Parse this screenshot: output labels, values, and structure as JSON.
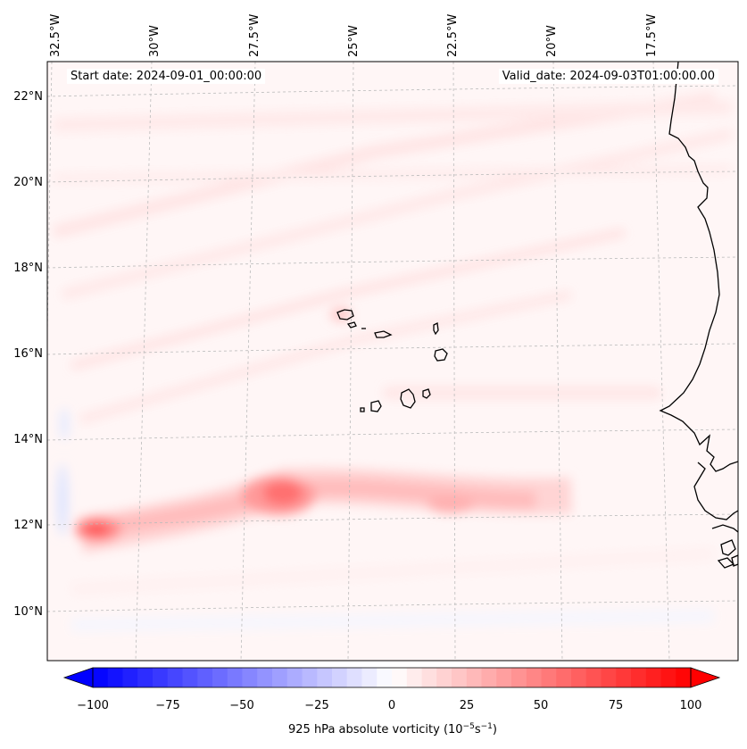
{
  "header": {
    "start_date": "Start date: 2024-09-01_00:00:00",
    "valid_date": "Valid_date: 2024-09-03T01:00:00.00"
  },
  "longitude_labels": [
    "32.5°W",
    "30°W",
    "27.5°W",
    "25°W",
    "22.5°W",
    "20°W",
    "17.5°W"
  ],
  "latitude_labels": [
    "22°N",
    "20°N",
    "18°N",
    "16°N",
    "14°N",
    "12°N",
    "10°N"
  ],
  "colorbar": {
    "label": "925 hPa absolute vorticity (10⁻⁵s⁻¹)",
    "label_prefix": "925 hPa absolute vorticity (10",
    "label_exp1": "−5",
    "label_mid": "s",
    "label_exp2": "−1",
    "label_suffix": ")",
    "ticks": [
      "−100",
      "−75",
      "−50",
      "−25",
      "0",
      "25",
      "50",
      "75",
      "100"
    ],
    "min": -100,
    "max": 100,
    "low_color": "#0000ff",
    "mid_color": "#ffffff",
    "high_color": "#ff0000"
  },
  "features": {
    "vorticity_max_west": "12°N 32°W",
    "vorticity_max_central": "12.5°N 27°W",
    "islands": "Cabo Verde",
    "coast": "West Africa"
  }
}
